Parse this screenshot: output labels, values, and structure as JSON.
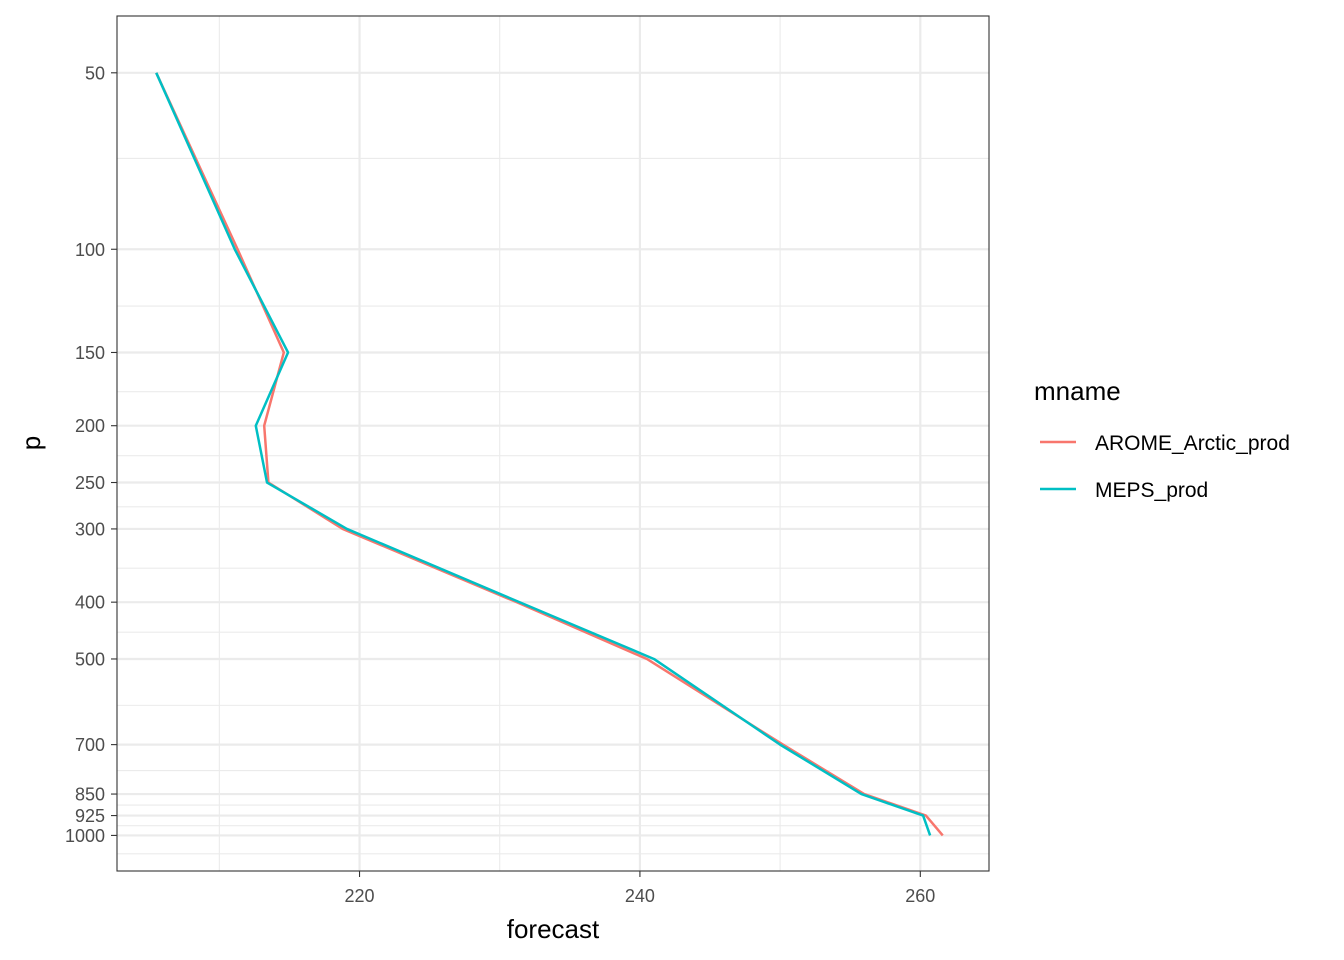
{
  "chart_data": {
    "type": "line",
    "title": "",
    "xlabel": "forecast",
    "ylabel": "p",
    "xlim": [
      202.7,
      264.9
    ],
    "x_ticks": [
      220,
      240,
      260
    ],
    "x_minor_ticks": [
      210,
      230,
      250
    ],
    "y_scale": "reversed-log",
    "ylim": [
      40,
      1150
    ],
    "y_ticks": [
      50,
      100,
      150,
      200,
      250,
      300,
      400,
      500,
      700,
      850,
      925,
      1000
    ],
    "y_minor_ticks": [
      70,
      125,
      175,
      225,
      275,
      350,
      450,
      600,
      775,
      887.5,
      962.5,
      1075
    ],
    "legend": {
      "title": "mname",
      "position": "right"
    },
    "series": [
      {
        "name": "AROME_Arctic_prod",
        "color": "#F8766D",
        "points": [
          {
            "x": 205.5,
            "y": 50
          },
          {
            "x": 211.3,
            "y": 100
          },
          {
            "x": 214.6,
            "y": 150
          },
          {
            "x": 213.2,
            "y": 200
          },
          {
            "x": 213.5,
            "y": 250
          },
          {
            "x": 218.8,
            "y": 300
          },
          {
            "x": 231.2,
            "y": 400
          },
          {
            "x": 240.5,
            "y": 500
          },
          {
            "x": 250.2,
            "y": 700
          },
          {
            "x": 256.0,
            "y": 850
          },
          {
            "x": 260.4,
            "y": 925
          },
          {
            "x": 261.6,
            "y": 1000
          }
        ]
      },
      {
        "name": "MEPS_prod",
        "color": "#00BFC4",
        "points": [
          {
            "x": 205.5,
            "y": 50
          },
          {
            "x": 211.1,
            "y": 100
          },
          {
            "x": 214.9,
            "y": 150
          },
          {
            "x": 212.6,
            "y": 200
          },
          {
            "x": 213.4,
            "y": 250
          },
          {
            "x": 219.1,
            "y": 300
          },
          {
            "x": 231.4,
            "y": 400
          },
          {
            "x": 241.0,
            "y": 500
          },
          {
            "x": 250.0,
            "y": 700
          },
          {
            "x": 255.8,
            "y": 850
          },
          {
            "x": 260.2,
            "y": 925
          },
          {
            "x": 260.7,
            "y": 1000
          }
        ]
      }
    ]
  }
}
